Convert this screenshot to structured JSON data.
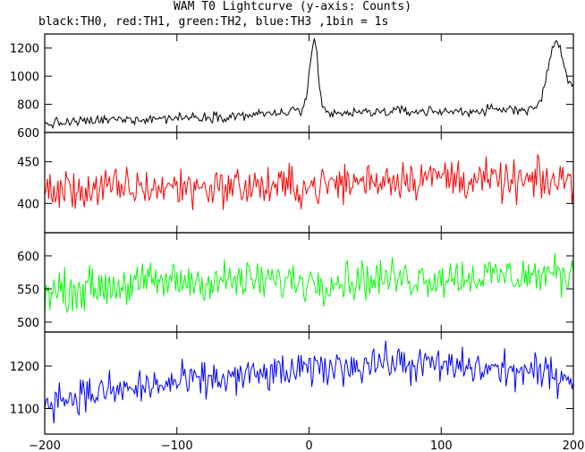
{
  "chart_data": {
    "type": "line",
    "title": "WAM T0 Lightcurve (y-axis: Counts)",
    "subtitle": "black:TH0, red:TH1, green:TH2, blue:TH3 ,1bin = 1s",
    "xlabel": "",
    "xlim": [
      -200,
      200
    ],
    "x_ticks": [
      -200,
      -100,
      0,
      100,
      200
    ],
    "x_tick_labels": [
      "−200",
      "−100",
      "0",
      "100",
      "200"
    ],
    "panels": [
      {
        "name": "TH0",
        "color": "#000000",
        "ylim": [
          600,
          1300
        ],
        "y_ticks": [
          600,
          800,
          1000,
          1200
        ],
        "y_tick_labels": [
          "600",
          "800",
          "1000",
          "1200"
        ],
        "baseline_x": [
          -200,
          -150,
          -100,
          -50,
          -20,
          -5
        ],
        "baseline_y": [
          660,
          690,
          705,
          720,
          740,
          760
        ],
        "baseline_x2": [
          15,
          60,
          120,
          170
        ],
        "baseline_y2": [
          730,
          750,
          750,
          770
        ],
        "noise": 30,
        "features": [
          {
            "x": [
              -5,
              -2,
              0,
              2,
              4,
              6,
              8,
              10,
              14
            ],
            "y": [
              760,
              850,
              1000,
              1150,
              1240,
              1150,
              900,
              780,
              730
            ]
          },
          {
            "x": [
              170,
              176,
              180,
              184,
              187,
              190,
              193,
              196,
              200
            ],
            "y": [
              770,
              840,
              1000,
              1200,
              1270,
              1200,
              1080,
              950,
              930
            ]
          }
        ]
      },
      {
        "name": "TH1",
        "color": "#ff0000",
        "ylim": [
          365,
          485
        ],
        "y_ticks": [
          400,
          450
        ],
        "y_tick_labels": [
          "400",
          "450"
        ],
        "trend_x": [
          -200,
          -100,
          0,
          60,
          100,
          150,
          200
        ],
        "trend_y": [
          415,
          420,
          420,
          430,
          432,
          425,
          427
        ],
        "noise": 20
      },
      {
        "name": "TH2",
        "color": "#00ff00",
        "ylim": [
          485,
          635
        ],
        "y_ticks": [
          500,
          550,
          600
        ],
        "y_tick_labels": [
          "500",
          "550",
          "600"
        ],
        "trend_x": [
          -200,
          -150,
          -100,
          0,
          100,
          200
        ],
        "trend_y": [
          545,
          555,
          562,
          562,
          568,
          572
        ],
        "noise": 25
      },
      {
        "name": "TH3",
        "color": "#0000ff",
        "ylim": [
          1040,
          1280
        ],
        "y_ticks": [
          1100,
          1200
        ],
        "y_tick_labels": [
          "1100",
          "1200"
        ],
        "trend_x": [
          -200,
          -150,
          -100,
          -50,
          0,
          50,
          100,
          150,
          200
        ],
        "trend_y": [
          1120,
          1140,
          1160,
          1175,
          1190,
          1210,
          1200,
          1190,
          1175
        ],
        "noise": 35
      }
    ]
  }
}
